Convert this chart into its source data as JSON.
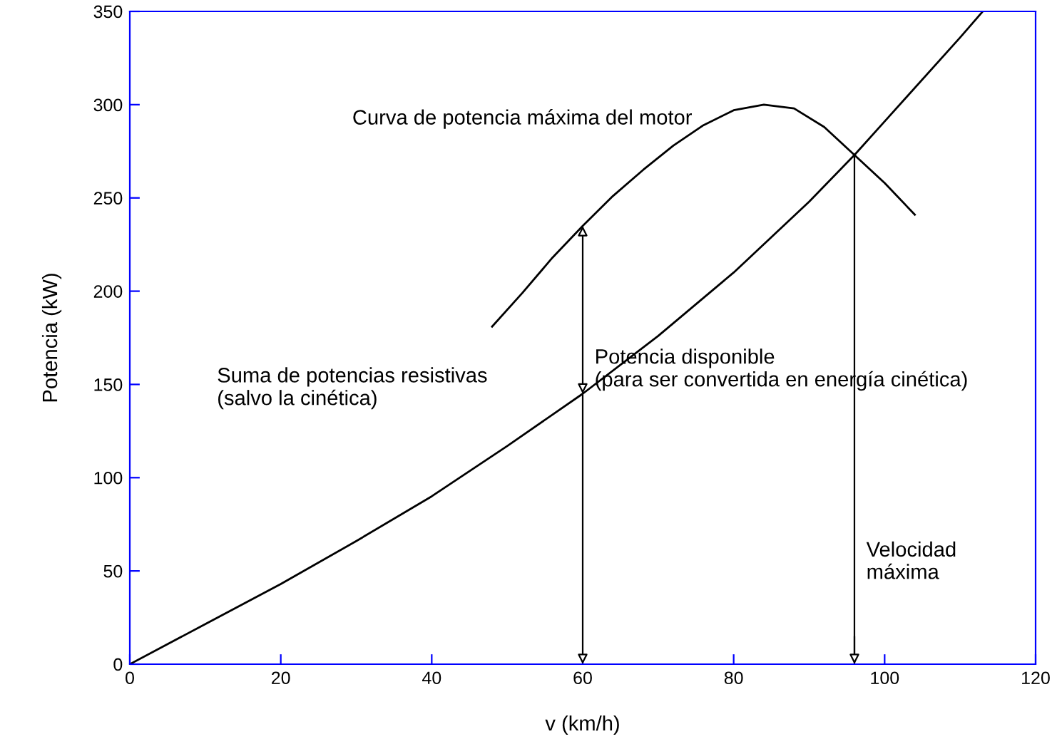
{
  "chart_data": {
    "type": "line",
    "xlabel": "v (km/h)",
    "ylabel": "Potencia (kW)",
    "xlim": [
      0,
      120
    ],
    "ylim": [
      0,
      350
    ],
    "xticks": [
      0,
      20,
      40,
      60,
      80,
      100,
      120
    ],
    "yticks": [
      0,
      50,
      100,
      150,
      200,
      250,
      300,
      350
    ],
    "grid": false,
    "legend": false,
    "marker": "none",
    "line_style": "solid",
    "series": [
      {
        "name": "Curva de potencia máxima del motor",
        "color": "#000000",
        "x": [
          48,
          52,
          56,
          60,
          64,
          68,
          72,
          76,
          80,
          84,
          88,
          92,
          96,
          100,
          104
        ],
        "values": [
          181,
          199,
          218,
          235,
          251,
          265,
          278,
          289,
          297,
          300,
          298,
          288,
          273,
          258,
          241
        ]
      },
      {
        "name": "Suma de potencias resistivas\n(salvo la cinética)",
        "color": "#000000",
        "x": [
          0,
          10,
          20,
          30,
          40,
          50,
          60,
          70,
          80,
          90,
          96,
          100,
          110,
          113
        ],
        "values": [
          0,
          21.5,
          43,
          66,
          90,
          117,
          145,
          176,
          210,
          248,
          273,
          291,
          336,
          350
        ]
      }
    ],
    "annotations": [
      {
        "text": "Potencia disponible\n(para ser convertida en energía cinética)",
        "x": 60,
        "y": 235
      }
    ],
    "ref_lines": [
      {
        "axis": "x",
        "value": 96,
        "label": "Velocidad\nmáxima",
        "color": "#000000",
        "line_style": "solid"
      }
    ]
  }
}
